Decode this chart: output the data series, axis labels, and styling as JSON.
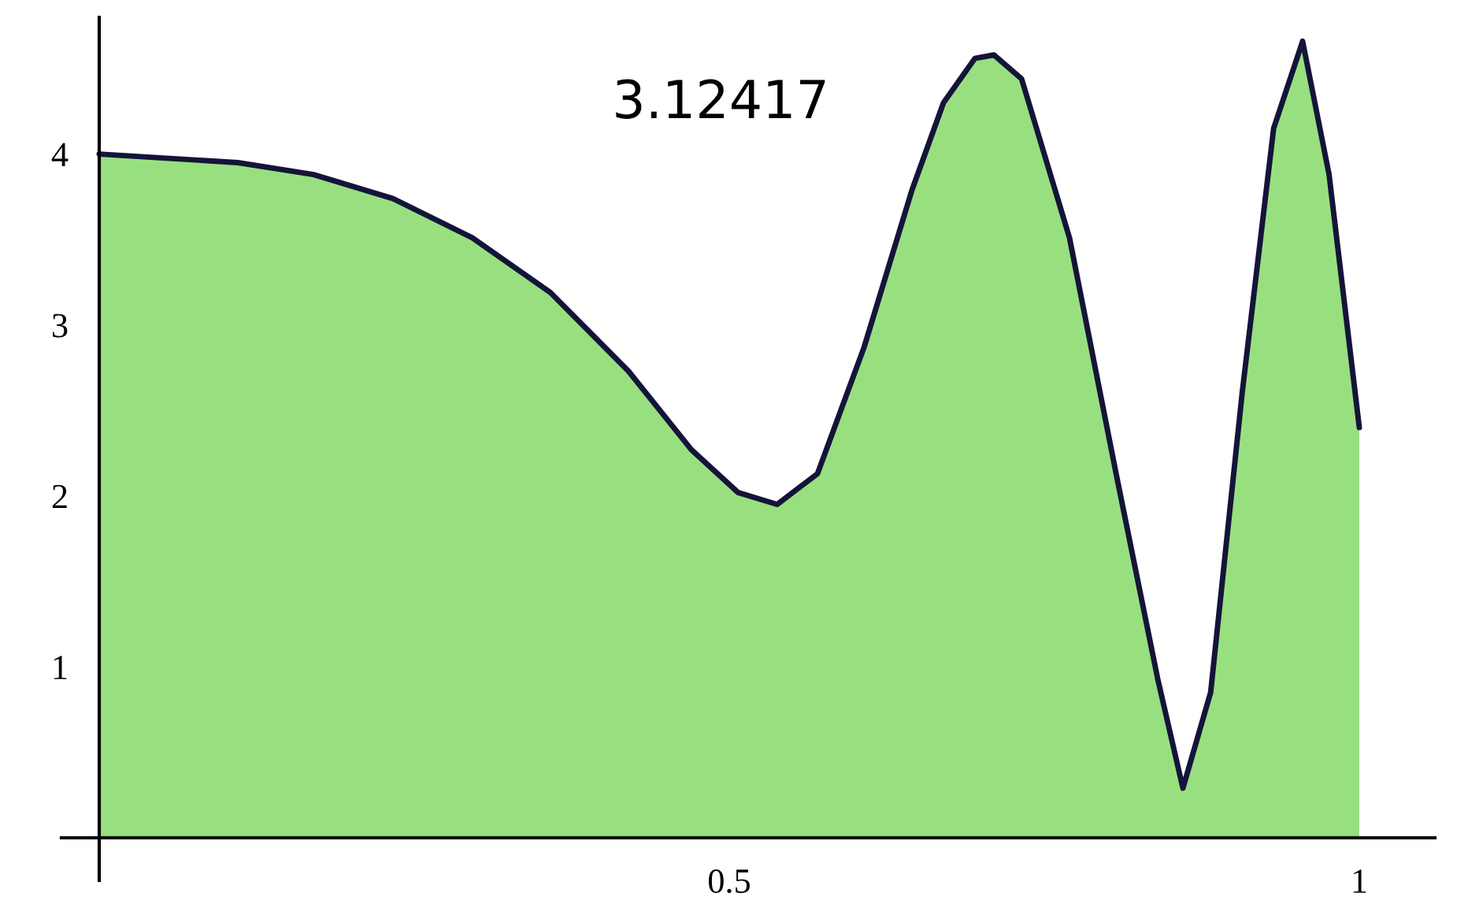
{
  "chart_data": {
    "type": "area",
    "x": [
      0,
      0.11,
      0.17,
      0.233,
      0.296,
      0.358,
      0.42,
      0.47,
      0.507,
      0.538,
      0.57,
      0.607,
      0.645,
      0.67,
      0.695,
      0.71,
      0.732,
      0.77,
      0.807,
      0.84,
      0.86,
      0.882,
      0.907,
      0.932,
      0.955,
      0.976,
      1.0
    ],
    "series": [
      {
        "color": "#98e07f",
        "values": [
          4.0,
          3.95,
          3.88,
          3.74,
          3.51,
          3.19,
          2.73,
          2.27,
          2.02,
          1.95,
          2.13,
          2.87,
          3.79,
          4.3,
          4.56,
          4.58,
          4.44,
          3.51,
          2.13,
          0.93,
          0.29,
          0.85,
          2.6,
          4.15,
          4.66,
          3.88,
          2.4
        ]
      }
    ],
    "xlim": [
      -0.03,
      1.06
    ],
    "ylim": [
      -0.25,
      4.8
    ],
    "xticks": [
      {
        "value": 0,
        "label": null
      },
      0.5,
      1
    ],
    "yticks": [
      1,
      2,
      3,
      4
    ],
    "grid": false,
    "annotations": [
      "3.12417"
    ]
  }
}
